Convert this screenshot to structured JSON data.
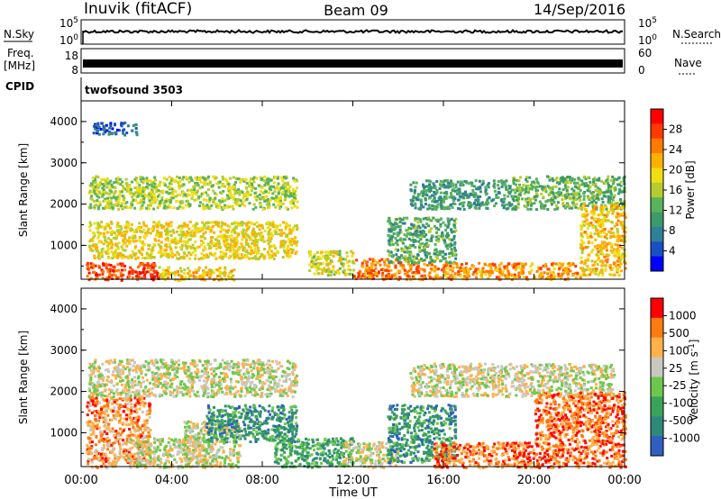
{
  "header": {
    "station": "Inuvik (fitACF)",
    "beam": "Beam 09",
    "date": "14/Sep/2016"
  },
  "strips": {
    "nsky": {
      "label": "N.Sky",
      "ticks": [
        "10^5",
        "10^0"
      ],
      "right_label": "N.Search",
      "right_ticks": [
        "10^5",
        "10^0"
      ]
    },
    "freq": {
      "label_line1": "Freq.",
      "label_line2": "[MHz]",
      "ticks": [
        "18",
        "8"
      ],
      "right_label": "Nave",
      "right_ticks": [
        "60",
        "0"
      ]
    },
    "cpid": {
      "label": "CPID",
      "value": "twofsound 3503"
    }
  },
  "chart_data": [
    {
      "type": "heatmap",
      "quantity": "Power",
      "ylabel": "Slant Range [km]",
      "ylim": [
        180,
        4500
      ],
      "yticks": [
        1000,
        2000,
        3000,
        4000
      ],
      "xlim": [
        0,
        24
      ],
      "colorbar": {
        "label": "Power [dB]",
        "ticks": [
          "28",
          "24",
          "20",
          "16",
          "12",
          "8",
          "4"
        ],
        "colors": [
          "#0000ff",
          "#1a4fc4",
          "#2f7f98",
          "#3c9a6a",
          "#59b35a",
          "#b6cc2e",
          "#f0dd12",
          "#ffb000",
          "#ff7a00",
          "#ff3a00",
          "#ff0000"
        ]
      },
      "bands": [
        {
          "x0": 0.2,
          "x1": 3.4,
          "y0": 180,
          "y1": 600,
          "level": 9.0
        },
        {
          "x0": 3.4,
          "x1": 6.8,
          "y0": 180,
          "y1": 500,
          "level": 6.5
        },
        {
          "x0": 0.3,
          "x1": 9.5,
          "y0": 700,
          "y1": 1600,
          "level": 6.0
        },
        {
          "x0": 0.3,
          "x1": 9.5,
          "y0": 1900,
          "y1": 2700,
          "level": 5.0
        },
        {
          "x0": 0.5,
          "x1": 2.5,
          "y0": 3700,
          "y1": 4000,
          "level": 1.5
        },
        {
          "x0": 10.0,
          "x1": 12.0,
          "y0": 300,
          "y1": 900,
          "level": 5.5
        },
        {
          "x0": 12.0,
          "x1": 15.5,
          "y0": 200,
          "y1": 700,
          "level": 8.0
        },
        {
          "x0": 13.5,
          "x1": 16.5,
          "y0": 600,
          "y1": 1700,
          "level": 3.5
        },
        {
          "x0": 15.5,
          "x1": 22.0,
          "y0": 200,
          "y1": 600,
          "level": 7.5
        },
        {
          "x0": 14.5,
          "x1": 19.0,
          "y0": 1900,
          "y1": 2600,
          "level": 3.0
        },
        {
          "x0": 19.0,
          "x1": 24.0,
          "y0": 1900,
          "y1": 2700,
          "level": 4.0
        },
        {
          "x0": 22.0,
          "x1": 24.0,
          "y0": 300,
          "y1": 2000,
          "level": 6.5
        }
      ]
    },
    {
      "type": "heatmap",
      "quantity": "Velocity",
      "ylabel": "Slant Range [km]",
      "xlabel": "Time UT",
      "ylim": [
        180,
        4500
      ],
      "yticks": [
        1000,
        2000,
        3000,
        4000
      ],
      "xlim": [
        0,
        24
      ],
      "xticks": [
        "00:00",
        "04:00",
        "08:00",
        "12:00",
        "16:00",
        "20:00",
        "00:00"
      ],
      "colorbar": {
        "label": "Velocity [m s^-1]",
        "ticks": [
          "1000",
          "500",
          "100",
          "25",
          "-25",
          "-100",
          "-500",
          "-1000"
        ],
        "colors": [
          "#2f5fc0",
          "#2d8a7a",
          "#3aa25a",
          "#6cc84a",
          "#c8c8c0",
          "#ffb14a",
          "#ff7a10",
          "#ff0000"
        ]
      },
      "bands": [
        {
          "x0": 0.2,
          "x1": 3.0,
          "y0": 180,
          "y1": 1900,
          "level": 5.5
        },
        {
          "x0": 2.0,
          "x1": 5.5,
          "y0": 180,
          "y1": 900,
          "level": 4.0
        },
        {
          "x0": 4.5,
          "x1": 7.0,
          "y0": 180,
          "y1": 1300,
          "level": 4.0
        },
        {
          "x0": 5.5,
          "x1": 9.5,
          "y0": 800,
          "y1": 1700,
          "level": 1.5
        },
        {
          "x0": 0.3,
          "x1": 9.5,
          "y0": 1900,
          "y1": 2800,
          "level": 4.0
        },
        {
          "x0": 8.5,
          "x1": 12.0,
          "y0": 180,
          "y1": 900,
          "level": 2.0
        },
        {
          "x0": 11.5,
          "x1": 14.0,
          "y0": 180,
          "y1": 800,
          "level": 4.0
        },
        {
          "x0": 13.5,
          "x1": 16.5,
          "y0": 300,
          "y1": 1700,
          "level": 1.5
        },
        {
          "x0": 15.5,
          "x1": 20.0,
          "y0": 180,
          "y1": 800,
          "level": 6.0
        },
        {
          "x0": 14.5,
          "x1": 23.5,
          "y0": 1900,
          "y1": 2700,
          "level": 4.0
        },
        {
          "x0": 20.0,
          "x1": 24.0,
          "y0": 180,
          "y1": 2000,
          "level": 6.0
        }
      ]
    }
  ]
}
